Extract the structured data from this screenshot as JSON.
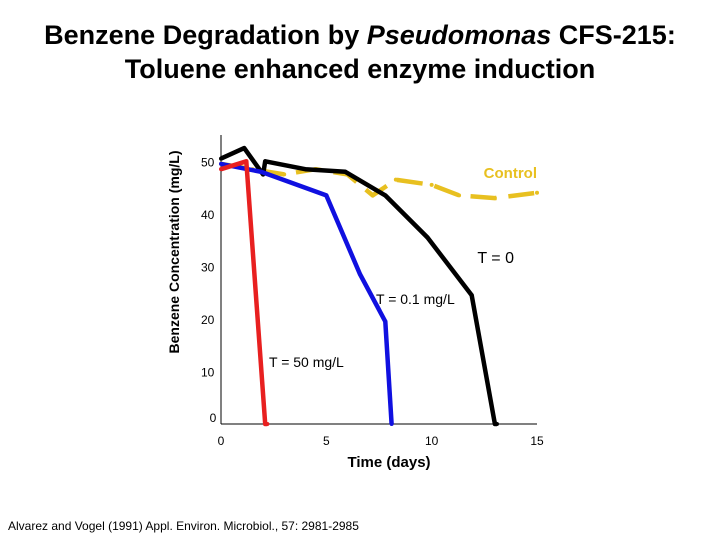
{
  "title": {
    "line1_prefix": "Benzene Degradation by ",
    "line1_italic": "Pseudomonas",
    "line1_suffix": " CFS-215:",
    "line2": "Toluene enhanced enzyme induction"
  },
  "citation": "Alvarez and Vogel (1991) Appl. Environ. Microbiol., 57: 2981-2985",
  "chart_data": {
    "type": "line",
    "title": "Benzene Degradation by Pseudomonas CFS-215: Toluene enhanced enzyme induction",
    "xlabel": "Time (days)",
    "ylabel": "Benzene Concentration (mg/L)",
    "xlim": [
      0,
      15
    ],
    "ylim": [
      0,
      55
    ],
    "x_ticks": [
      0,
      5,
      10,
      15
    ],
    "y_ticks": [
      0,
      10,
      20,
      30,
      40,
      50
    ],
    "grid": false,
    "legend": "none (series labeled inline)",
    "series": [
      {
        "name": "Control",
        "color": "#E8C020",
        "style": "dashed",
        "x": [
          0,
          1.5,
          3,
          4.5,
          6,
          7.2,
          8.3,
          10,
          11.3,
          13,
          15
        ],
        "y": [
          49.5,
          48.5,
          47.5,
          48.5,
          47.5,
          43.5,
          46.5,
          45.5,
          43.5,
          43,
          44
        ]
      },
      {
        "name": "T = 0",
        "color": "#000000",
        "style": "solid",
        "x": [
          0,
          1.1,
          2,
          2.1,
          4,
          5.9,
          7.8,
          9.8,
          11.9,
          13,
          13.1
        ],
        "y": [
          50.5,
          52.5,
          47.5,
          50,
          48.5,
          48,
          43.5,
          35.5,
          24.5,
          0,
          0
        ]
      },
      {
        "name": "T = 0.1 mg/L",
        "color": "#1010E0",
        "style": "solid",
        "x": [
          0,
          1.9,
          5,
          6.6,
          7.8,
          8.1
        ],
        "y": [
          49.5,
          48,
          43.5,
          28.5,
          19.5,
          0
        ]
      },
      {
        "name": "T = 50 mg/L",
        "color": "#E82020",
        "style": "solid",
        "x": [
          0,
          1.2,
          2.1,
          2.2
        ],
        "y": [
          48.5,
          50,
          0,
          0
        ]
      }
    ],
    "annotations": [
      {
        "text": "Control",
        "series": "Control"
      },
      {
        "text": "T = 0",
        "series": "T = 0"
      },
      {
        "text": "T = 0.1 mg/L",
        "series": "T = 0.1 mg/L"
      },
      {
        "text": "T = 50 mg/L",
        "series": "T = 50 mg/L"
      }
    ]
  }
}
